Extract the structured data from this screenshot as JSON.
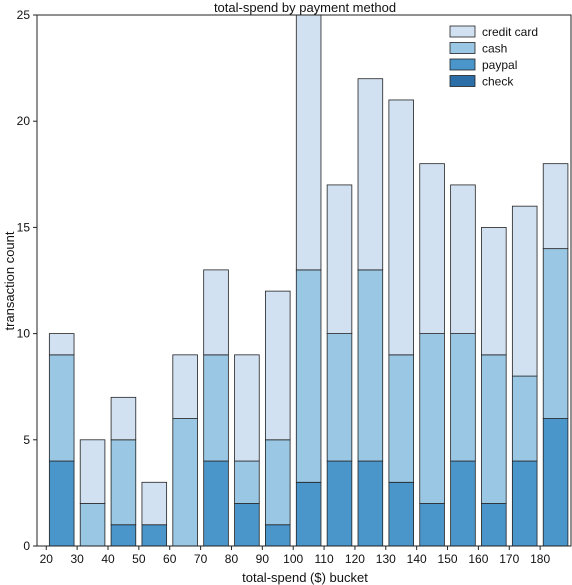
{
  "chart_data": {
    "type": "bar",
    "stacked": true,
    "title": "total-spend by payment method",
    "xlabel": "total-spend ($) bucket",
    "ylabel": "transaction count",
    "ylim": [
      0,
      25
    ],
    "yticks": [
      0,
      5,
      10,
      15,
      20,
      25
    ],
    "xticks": [
      20,
      30,
      40,
      50,
      60,
      70,
      80,
      90,
      100,
      110,
      120,
      130,
      140,
      150,
      160,
      170,
      180
    ],
    "bucket_width": 10,
    "grid": false,
    "legend_position": "top-right",
    "categories": [
      20,
      30,
      40,
      50,
      60,
      70,
      80,
      90,
      100,
      110,
      120,
      130,
      140,
      150,
      160,
      170,
      180
    ],
    "series": [
      {
        "name": "check",
        "color": "#2c6fa8",
        "values": [
          0,
          0,
          0,
          0,
          0,
          0,
          0,
          0,
          0,
          0,
          0,
          0,
          0,
          0,
          0,
          0,
          0
        ]
      },
      {
        "name": "paypal",
        "color": "#4a96cb",
        "values": [
          4,
          0,
          1,
          1,
          0,
          4,
          2,
          1,
          3,
          4,
          4,
          3,
          2,
          4,
          2,
          4,
          6
        ]
      },
      {
        "name": "cash",
        "color": "#9ac7e3",
        "values": [
          5,
          2,
          4,
          0,
          6,
          5,
          2,
          4,
          10,
          6,
          9,
          6,
          8,
          6,
          7,
          4,
          8
        ]
      },
      {
        "name": "credit card",
        "color": "#d1e1f2",
        "values": [
          1,
          3,
          2,
          2,
          3,
          4,
          5,
          7,
          12,
          7,
          9,
          12,
          8,
          7,
          6,
          8,
          4
        ]
      }
    ],
    "legend_order": [
      "credit card",
      "cash",
      "paypal",
      "check"
    ]
  }
}
